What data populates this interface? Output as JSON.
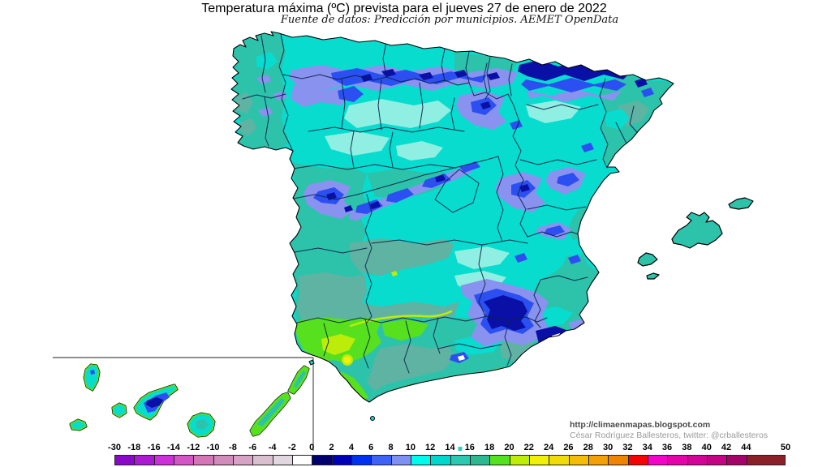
{
  "header": {
    "title": "Temperatura máxima (ºC) prevista para el jueves 27 de enero de 2022",
    "subtitle": "Fuente de datos: Predicción por municipios. AEMET OpenData"
  },
  "attribution": {
    "line1": "http://climaenmapas.blogspot.com",
    "line2": "César Rodríguez Ballesteros, twitter: @crballesteros"
  },
  "legend": {
    "ticks": [
      "-30",
      "-18",
      "-16",
      "-14",
      "-12",
      "-10",
      "-8",
      "-6",
      "-4",
      "-2",
      "0",
      "2",
      "4",
      "6",
      "8",
      "10",
      "12",
      "14",
      "16",
      "18",
      "20",
      "22",
      "24",
      "26",
      "28",
      "30",
      "32",
      "34",
      "36",
      "38",
      "40",
      "42",
      "44",
      "50"
    ],
    "last_cell_units": 2,
    "marker_between": [
      "14",
      "16"
    ],
    "marker_color": "#35CDB9",
    "segment_colors": [
      "#8A08C8",
      "#AA1AD2",
      "#CC30D8",
      "#D455C6",
      "#D276B6",
      "#D28CBC",
      "#D6A2C6",
      "#DABFD0",
      "#E0D8DE",
      "#FEFEFE",
      "#00006E",
      "#0000B6",
      "#0030F0",
      "#3C62F6",
      "#7E90F2",
      "#00FAEC",
      "#00D8CE",
      "#2BC9B2",
      "#2EB892",
      "#55E21E",
      "#BEEE08",
      "#F0F008",
      "#F0DC08",
      "#F4BE08",
      "#F4A008",
      "#F08400",
      "#F40404",
      "#F404C8",
      "#E404AA",
      "#D40496",
      "#C40484",
      "#A4046A",
      "#8C2028"
    ]
  },
  "map": {
    "palette": {
      "cyan": "#07DCCE",
      "mint": "#8FEFE2",
      "teal": "#2CC3AA",
      "tealdark": "#3FAE92",
      "grayteal": "#5FB3A3",
      "peri": "#8A92F0",
      "blue": "#2B4FF0",
      "navy": "#0A10A6",
      "deepnavy": "#000080",
      "green": "#57E01E",
      "ygreen": "#BCEC0A",
      "yellow": "#F0F00C",
      "border": "#0A2248",
      "inset": "#6A6A6A",
      "attr1": "#4A4A4A",
      "attr2": "#9A9A9A"
    }
  }
}
